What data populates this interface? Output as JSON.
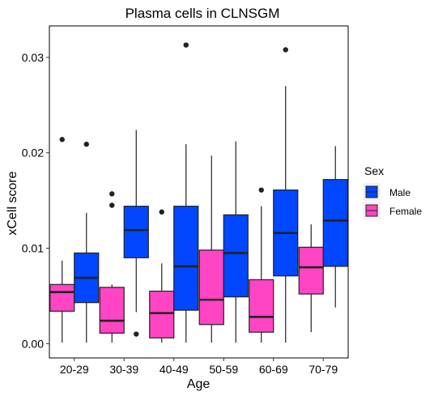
{
  "chart_data": {
    "type": "boxplot",
    "title": "Plasma cells in CLNSGM",
    "xlabel": "Age",
    "ylabel": "xCell score",
    "categories": [
      "20-29",
      "30-39",
      "40-49",
      "50-59",
      "60-69",
      "70-79"
    ],
    "ylim": [
      -0.0015,
      0.0333
    ],
    "yticks": [
      0.0,
      0.01,
      0.02,
      0.03
    ],
    "ytick_labels": [
      "0.00",
      "0.01",
      "0.02",
      "0.03"
    ],
    "grid": false,
    "legend": {
      "title": "Sex",
      "position": "right",
      "entries": [
        {
          "name": "Male",
          "color": "#0047FF"
        },
        {
          "name": "Female",
          "color": "#FF45C4"
        }
      ]
    },
    "series": [
      {
        "name": "Female",
        "color": "#FF45C4",
        "boxes": [
          {
            "min": 0.0001,
            "q1": 0.0034,
            "median": 0.0054,
            "q3": 0.0062,
            "max": 0.0087,
            "outliers": [
              0.0214
            ]
          },
          {
            "min": 0.0001,
            "q1": 0.0011,
            "median": 0.0024,
            "q3": 0.0059,
            "max": 0.0062,
            "outliers": [
              0.0157,
              0.0145
            ]
          },
          {
            "min": 0.0001,
            "q1": 0.0006,
            "median": 0.0032,
            "q3": 0.0055,
            "max": 0.0084,
            "outliers": [
              0.0138
            ]
          },
          {
            "min": 0.0001,
            "q1": 0.002,
            "median": 0.0046,
            "q3": 0.0098,
            "max": 0.0197,
            "outliers": []
          },
          {
            "min": 0.0001,
            "q1": 0.0012,
            "median": 0.0028,
            "q3": 0.0067,
            "max": 0.0144,
            "outliers": [
              0.0161
            ]
          },
          {
            "min": 0.0012,
            "q1": 0.0052,
            "median": 0.008,
            "q3": 0.0101,
            "max": 0.0125,
            "outliers": []
          }
        ]
      },
      {
        "name": "Male",
        "color": "#0047FF",
        "boxes": [
          {
            "min": 0.0001,
            "q1": 0.0043,
            "median": 0.0069,
            "q3": 0.0095,
            "max": 0.0137,
            "outliers": [
              0.0209
            ]
          },
          {
            "min": 0.0033,
            "q1": 0.009,
            "median": 0.0119,
            "q3": 0.0144,
            "max": 0.0224,
            "outliers": [
              0.001
            ]
          },
          {
            "min": 0.0001,
            "q1": 0.0035,
            "median": 0.0081,
            "q3": 0.0144,
            "max": 0.0209,
            "outliers": [
              0.0313
            ]
          },
          {
            "min": 0.0001,
            "q1": 0.0049,
            "median": 0.0095,
            "q3": 0.0135,
            "max": 0.0212,
            "outliers": []
          },
          {
            "min": 0.0001,
            "q1": 0.0071,
            "median": 0.0116,
            "q3": 0.0161,
            "max": 0.027,
            "outliers": [
              0.0308
            ]
          },
          {
            "min": 0.0038,
            "q1": 0.0081,
            "median": 0.0129,
            "q3": 0.0172,
            "max": 0.0207,
            "outliers": []
          }
        ]
      }
    ]
  }
}
